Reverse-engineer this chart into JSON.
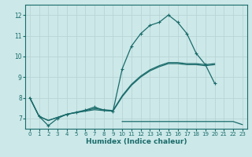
{
  "xlabel": "Humidex (Indice chaleur)",
  "bg_color": "#cce8e8",
  "grid_color": "#b8d4d4",
  "line_color": "#1a6b6b",
  "xlim": [
    -0.5,
    23.5
  ],
  "ylim": [
    6.5,
    12.5
  ],
  "yticks": [
    7,
    8,
    9,
    10,
    11,
    12
  ],
  "xticks": [
    0,
    1,
    2,
    3,
    4,
    5,
    6,
    7,
    8,
    9,
    10,
    11,
    12,
    13,
    14,
    15,
    16,
    17,
    18,
    19,
    20,
    21,
    22,
    23
  ],
  "curve_max": {
    "x": [
      0,
      1,
      2,
      3,
      4,
      5,
      6,
      7,
      8,
      9,
      10,
      11,
      12,
      13,
      14,
      15,
      16,
      17,
      18,
      19,
      20,
      21,
      22,
      23
    ],
    "y": [
      8.0,
      7.1,
      6.65,
      7.0,
      7.2,
      7.3,
      7.4,
      7.55,
      7.4,
      7.35,
      9.4,
      10.5,
      11.1,
      11.5,
      11.65,
      12.0,
      11.65,
      11.1,
      10.15,
      9.6,
      8.7,
      null,
      null,
      null
    ]
  },
  "curve_min": {
    "x": [
      10,
      11,
      12,
      13,
      14,
      15,
      16,
      17,
      18,
      19,
      20,
      21,
      22,
      23
    ],
    "y": [
      6.85,
      6.85,
      6.85,
      6.85,
      6.85,
      6.85,
      6.85,
      6.85,
      6.85,
      6.85,
      6.85,
      6.85,
      6.85,
      6.7
    ]
  },
  "curve_mean1": {
    "x": [
      0,
      1,
      2,
      3,
      4,
      5,
      6,
      7,
      8,
      9,
      10,
      11,
      12,
      13,
      14,
      15,
      16,
      17,
      18,
      19,
      20
    ],
    "y": [
      8.0,
      7.1,
      6.9,
      7.05,
      7.2,
      7.28,
      7.35,
      7.42,
      7.38,
      7.35,
      8.05,
      8.6,
      9.0,
      9.3,
      9.5,
      9.65,
      9.65,
      9.6,
      9.6,
      9.55,
      9.6
    ]
  },
  "curve_mean2": {
    "x": [
      0,
      1,
      2,
      3,
      4,
      5,
      6,
      7,
      8,
      9,
      10,
      11,
      12,
      13,
      14,
      15,
      16,
      17,
      18,
      19,
      20,
      21,
      22,
      23
    ],
    "y": [
      8.0,
      7.1,
      6.9,
      7.05,
      7.2,
      7.28,
      7.38,
      7.48,
      7.42,
      7.38,
      8.1,
      8.65,
      9.05,
      9.35,
      9.55,
      9.7,
      9.7,
      9.65,
      9.65,
      9.6,
      9.65,
      null,
      null,
      null
    ]
  }
}
